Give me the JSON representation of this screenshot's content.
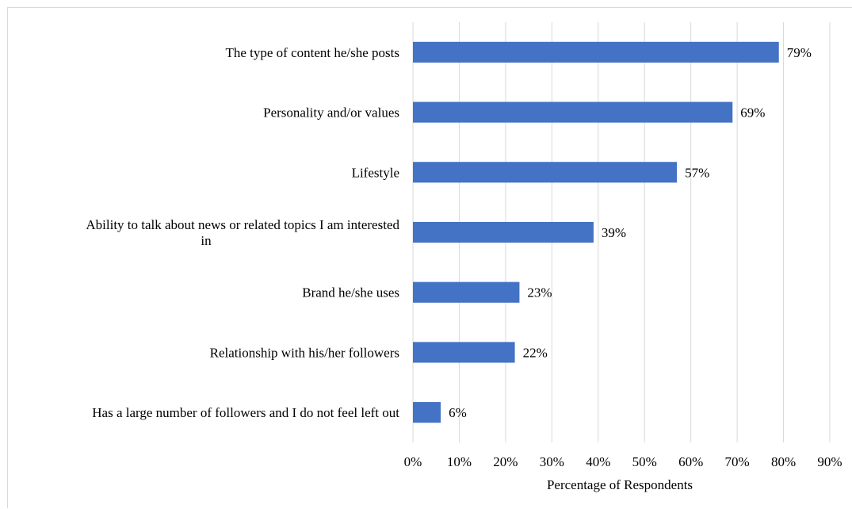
{
  "chart_data": {
    "type": "bar",
    "orientation": "horizontal",
    "title": "",
    "xlabel": "Percentage of Respondents",
    "ylabel": "",
    "xlim": [
      0,
      90
    ],
    "x_ticks": [
      "0%",
      "10%",
      "20%",
      "30%",
      "40%",
      "50%",
      "60%",
      "70%",
      "80%",
      "90%"
    ],
    "grid": true,
    "legend": "none",
    "categories": [
      [
        "The type of content he/she posts"
      ],
      [
        "Personality and/or values"
      ],
      [
        "Lifestyle"
      ],
      [
        "Ability to talk about news or related topics I am interested",
        "in"
      ],
      [
        "Brand he/she uses"
      ],
      [
        "Relationship with his/her followers"
      ],
      [
        "Has a large number of followers and I do not feel left out"
      ]
    ],
    "values": [
      79,
      69,
      57,
      39,
      23,
      22,
      6
    ],
    "data_labels": [
      "79%",
      "69%",
      "57%",
      "39%",
      "23%",
      "22%",
      "6%"
    ],
    "bar_color": "#4472c4",
    "grid_color": "#d9d9d9"
  }
}
